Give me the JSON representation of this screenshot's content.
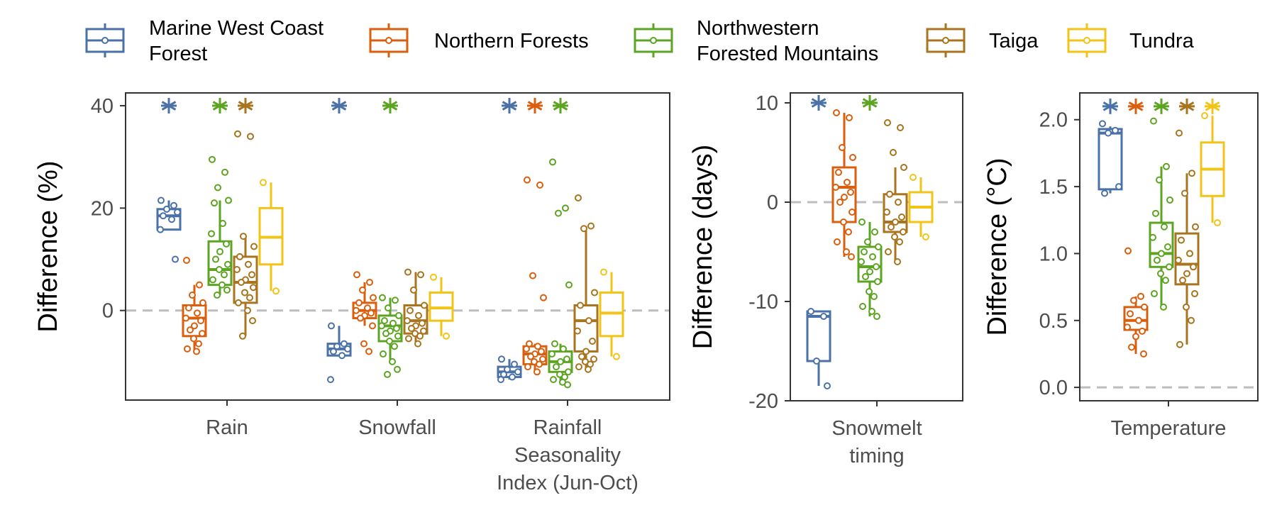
{
  "legend": {
    "items": [
      {
        "lines": [
          "Marine West Coast",
          "Forest"
        ],
        "color": "#4A72A8"
      },
      {
        "lines": [
          "Northern Forests"
        ],
        "color": "#D95F0E"
      },
      {
        "lines": [
          "Northwestern",
          "Forested Mountains"
        ],
        "color": "#5DA423"
      },
      {
        "lines": [
          "Taiga"
        ],
        "color": "#A8741E"
      },
      {
        "lines": [
          "Tundra"
        ],
        "color": "#F2C418"
      }
    ]
  },
  "chart_data": [
    {
      "type": "boxplot",
      "ylabel": "Difference (%)",
      "ylim": [
        -17.5,
        42.5
      ],
      "yticks": [
        0,
        20,
        40
      ],
      "reference_line": 0,
      "categories": [
        {
          "label": [
            "Rain"
          ]
        },
        {
          "label": [
            "Snowfall"
          ]
        },
        {
          "label": [
            "Rainfall",
            "Seasonality",
            "Index (Jun-Oct)"
          ]
        }
      ],
      "significance_marker": "*",
      "significance_y": 40,
      "groups": [
        {
          "category": 0,
          "series": 0,
          "q1": 15.8,
          "median": 18.5,
          "q3": 19.8,
          "min": 15.8,
          "max": 21.5,
          "points": [
            21.5,
            20.5,
            19.8,
            19.2,
            18.5,
            17.8,
            15.8,
            10.0
          ],
          "significant": true
        },
        {
          "category": 0,
          "series": 1,
          "q1": -5.0,
          "median": -1.5,
          "q3": 1.0,
          "min": -8.0,
          "max": 5.0,
          "points": [
            9.8,
            5.0,
            3.0,
            1.5,
            0.5,
            -0.5,
            -1.5,
            -2.0,
            -3.0,
            -3.8,
            -4.5,
            -5.5,
            -6.5,
            -7.5,
            -8.0
          ],
          "significant": false
        },
        {
          "category": 0,
          "series": 2,
          "q1": 5.0,
          "median": 8.0,
          "q3": 13.5,
          "min": 3.0,
          "max": 21.5,
          "points": [
            29.5,
            27.0,
            24.0,
            21.5,
            21.0,
            17.0,
            15.0,
            13.0,
            11.5,
            10.0,
            9.0,
            8.0,
            7.0,
            6.0,
            5.0,
            4.0,
            3.0
          ],
          "significant": true
        },
        {
          "category": 0,
          "series": 3,
          "q1": 1.5,
          "median": 5.5,
          "q3": 10.5,
          "min": -5.0,
          "max": 14.5,
          "points": [
            34.5,
            34.0,
            14.5,
            12.5,
            10.5,
            9.0,
            8.0,
            7.0,
            6.0,
            5.5,
            4.5,
            3.5,
            2.5,
            1.5,
            0.0,
            -2.0,
            -5.0
          ],
          "significant": true
        },
        {
          "category": 0,
          "series": 4,
          "q1": 9.0,
          "median": 14.3,
          "q3": 20.0,
          "min": 3.8,
          "max": 25.0,
          "points": [
            25.0,
            3.8
          ],
          "significant": false
        },
        {
          "category": 1,
          "series": 0,
          "q1": -8.8,
          "median": -7.5,
          "q3": -6.5,
          "min": -8.8,
          "max": -3.0,
          "points": [
            -3.0,
            -6.5,
            -7.0,
            -7.5,
            -8.0,
            -8.8,
            -13.5
          ],
          "significant": true
        },
        {
          "category": 1,
          "series": 1,
          "q1": -1.5,
          "median": 0.0,
          "q3": 1.5,
          "min": -3.0,
          "max": 5.5,
          "points": [
            7.0,
            5.5,
            4.0,
            2.5,
            1.5,
            0.5,
            0.0,
            -0.5,
            -1.0,
            -1.5,
            -3.0,
            -6.5,
            -8.0
          ],
          "significant": false
        },
        {
          "category": 1,
          "series": 2,
          "q1": -6.0,
          "median": -3.0,
          "q3": -1.0,
          "min": -10.0,
          "max": 2.5,
          "points": [
            2.5,
            2.0,
            0.5,
            -1.0,
            -2.0,
            -2.5,
            -3.0,
            -3.5,
            -4.0,
            -4.5,
            -5.0,
            -6.0,
            -7.0,
            -8.5,
            -10.0,
            -11.5,
            -12.5
          ],
          "significant": true
        },
        {
          "category": 1,
          "series": 3,
          "q1": -4.5,
          "median": -2.0,
          "q3": 1.0,
          "min": -6.5,
          "max": 7.5,
          "points": [
            7.5,
            7.0,
            4.0,
            1.0,
            0.0,
            -1.0,
            -2.0,
            -2.5,
            -3.0,
            -3.5,
            -4.0,
            -4.5,
            -5.0,
            -5.5,
            -6.5
          ],
          "significant": false
        },
        {
          "category": 1,
          "series": 4,
          "q1": -2.0,
          "median": 0.5,
          "q3": 3.5,
          "min": -5.0,
          "max": 6.5,
          "points": [
            6.5,
            -5.0
          ],
          "significant": false
        },
        {
          "category": 2,
          "series": 0,
          "q1": -13.0,
          "median": -12.0,
          "q3": -11.0,
          "min": -13.5,
          "max": -9.5,
          "points": [
            -9.5,
            -10.5,
            -11.5,
            -12.0,
            -12.5,
            -13.0,
            -13.5
          ],
          "significant": true
        },
        {
          "category": 2,
          "series": 1,
          "q1": -10.5,
          "median": -8.5,
          "q3": -7.0,
          "min": -12.0,
          "max": -6.5,
          "points": [
            25.5,
            24.5,
            6.8,
            2.5,
            -6.5,
            -7.0,
            -7.5,
            -8.0,
            -8.5,
            -9.0,
            -9.5,
            -10.0,
            -10.5,
            -11.0,
            -12.0
          ],
          "significant": true
        },
        {
          "category": 2,
          "series": 2,
          "q1": -12.0,
          "median": -10.0,
          "q3": -8.0,
          "min": -14.5,
          "max": -6.5,
          "points": [
            29.0,
            20.0,
            19.0,
            5.0,
            -6.5,
            -7.5,
            -8.5,
            -9.5,
            -10.0,
            -11.0,
            -12.0,
            -12.5,
            -13.0,
            -13.5,
            -14.0,
            -14.5
          ],
          "significant": true
        },
        {
          "category": 2,
          "series": 3,
          "q1": -8.0,
          "median": -2.0,
          "q3": 1.0,
          "min": -11.5,
          "max": 16.5,
          "points": [
            22.0,
            16.5,
            16.0,
            3.5,
            1.0,
            -2.0,
            -4.0,
            -6.0,
            -8.0,
            -9.0,
            -9.5,
            -10.0,
            -10.5,
            -11.0,
            -11.5
          ],
          "significant": false
        },
        {
          "category": 2,
          "series": 4,
          "q1": -5.0,
          "median": -0.5,
          "q3": 3.5,
          "min": -9.0,
          "max": 7.5,
          "points": [
            7.5,
            -9.0
          ],
          "significant": false
        }
      ]
    },
    {
      "type": "boxplot",
      "ylabel": "Difference (days)",
      "ylim": [
        -20.0,
        11.0
      ],
      "yticks": [
        -20,
        -10,
        0,
        10
      ],
      "reference_line": 0,
      "categories": [
        {
          "label": [
            "Snowmelt",
            "timing"
          ]
        }
      ],
      "significance_marker": "*",
      "significance_y": 10,
      "groups": [
        {
          "category": 0,
          "series": 0,
          "q1": -16.0,
          "median": -11.5,
          "q3": -11.0,
          "min": -18.5,
          "max": -11.0,
          "points": [
            -11.0,
            -11.5,
            -16.0,
            -18.5
          ],
          "significant": true
        },
        {
          "category": 0,
          "series": 1,
          "q1": -2.0,
          "median": 1.5,
          "q3": 3.5,
          "min": -5.5,
          "max": 9.0,
          "points": [
            9.0,
            8.5,
            5.5,
            4.5,
            3.0,
            2.0,
            1.5,
            1.0,
            0.5,
            0.0,
            -1.0,
            -2.0,
            -3.0,
            -4.0,
            -5.0,
            -5.5
          ],
          "significant": false
        },
        {
          "category": 0,
          "series": 2,
          "q1": -8.0,
          "median": -6.5,
          "q3": -4.5,
          "min": -11.5,
          "max": -2.0,
          "points": [
            -2.0,
            -3.0,
            -4.0,
            -4.5,
            -5.0,
            -5.5,
            -6.0,
            -6.5,
            -7.0,
            -7.5,
            -8.0,
            -9.0,
            -9.5,
            -10.5,
            -11.0,
            -11.5
          ],
          "significant": true
        },
        {
          "category": 0,
          "series": 3,
          "q1": -3.0,
          "median": -2.0,
          "q3": 0.8,
          "min": -6.0,
          "max": 3.5,
          "points": [
            8.0,
            7.5,
            5.0,
            3.5,
            0.8,
            0.0,
            -1.0,
            -1.5,
            -2.0,
            -2.5,
            -3.0,
            -3.5,
            -4.0,
            -5.0,
            -6.0
          ],
          "significant": false
        },
        {
          "category": 0,
          "series": 4,
          "q1": -2.0,
          "median": -0.5,
          "q3": 1.0,
          "min": -3.5,
          "max": 2.5,
          "points": [
            2.5,
            -3.5
          ],
          "significant": false
        }
      ]
    },
    {
      "type": "boxplot",
      "ylabel": "Difference (°C)",
      "ylim": [
        -0.1,
        2.2
      ],
      "yticks": [
        0.0,
        0.5,
        1.0,
        1.5,
        2.0
      ],
      "ytick_labels": [
        "0.0",
        "0.5",
        "1.0",
        "1.5",
        "2.0"
      ],
      "reference_line": 0,
      "categories": [
        {
          "label": [
            "Temperature"
          ]
        }
      ],
      "significance_marker": "*",
      "significance_y": 2.1,
      "groups": [
        {
          "category": 0,
          "series": 0,
          "q1": 1.48,
          "median": 1.9,
          "q3": 1.93,
          "min": 1.45,
          "max": 1.95,
          "points": [
            1.97,
            1.92,
            1.9,
            1.5,
            1.45
          ],
          "significant": true
        },
        {
          "category": 0,
          "series": 1,
          "q1": 0.43,
          "median": 0.5,
          "q3": 0.6,
          "min": 0.25,
          "max": 0.68,
          "points": [
            1.02,
            0.68,
            0.65,
            0.6,
            0.55,
            0.5,
            0.45,
            0.42,
            0.38,
            0.3,
            0.25
          ],
          "significant": true
        },
        {
          "category": 0,
          "series": 2,
          "q1": 0.9,
          "median": 1.0,
          "q3": 1.23,
          "min": 0.6,
          "max": 1.65,
          "points": [
            1.99,
            1.65,
            1.55,
            1.4,
            1.3,
            1.2,
            1.12,
            1.05,
            1.0,
            0.95,
            0.9,
            0.85,
            0.8,
            0.7,
            0.6
          ],
          "significant": true
        },
        {
          "category": 0,
          "series": 3,
          "q1": 0.77,
          "median": 0.92,
          "q3": 1.15,
          "min": 0.32,
          "max": 1.6,
          "points": [
            1.9,
            1.6,
            1.45,
            1.2,
            1.1,
            1.0,
            0.95,
            0.9,
            0.85,
            0.8,
            0.7,
            0.6,
            0.5,
            0.32
          ],
          "significant": true
        },
        {
          "category": 0,
          "series": 4,
          "q1": 1.43,
          "median": 1.63,
          "q3": 1.83,
          "min": 1.23,
          "max": 2.03,
          "points": [
            2.03,
            1.23
          ],
          "significant": true
        }
      ]
    }
  ]
}
